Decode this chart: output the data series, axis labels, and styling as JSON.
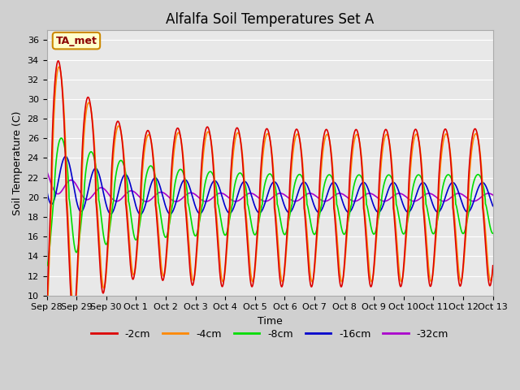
{
  "title": "Alfalfa Soil Temperatures Set A",
  "xlabel": "Time",
  "ylabel": "Soil Temperature (C)",
  "ylim": [
    10,
    37
  ],
  "yticks": [
    10,
    12,
    14,
    16,
    18,
    20,
    22,
    24,
    26,
    28,
    30,
    32,
    34,
    36
  ],
  "line_colors": {
    "-2cm": "#dd0000",
    "-4cm": "#ff8800",
    "-8cm": "#00dd00",
    "-16cm": "#0000cc",
    "-32cm": "#aa00cc"
  },
  "date_labels": [
    "Sep 28",
    "Sep 29",
    "Sep 30",
    "Oct 1",
    "Oct 2",
    "Oct 3",
    "Oct 4",
    "Oct 5",
    "Oct 6",
    "Oct 7",
    "Oct 8",
    "Oct 9",
    "Oct 10",
    "Oct 11",
    "Oct 12",
    "Oct 13"
  ],
  "annotation_text": "TA_met",
  "fig_facecolor": "#d0d0d0",
  "ax_facecolor": "#e8e8e8",
  "grid_color": "#ffffff",
  "title_fontsize": 12,
  "label_fontsize": 9,
  "tick_fontsize": 8,
  "legend_fontsize": 9
}
